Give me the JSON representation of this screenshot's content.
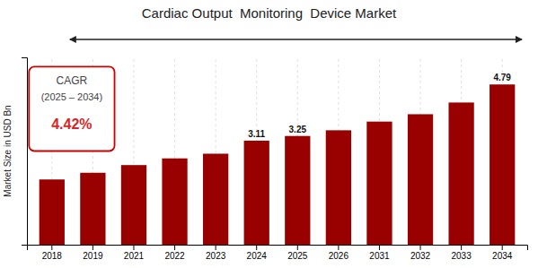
{
  "chart_data": {
    "type": "bar",
    "title": "Cardiac Output  Monitoring  Device Market",
    "ylabel": "Market Size in USD Bn",
    "categories": [
      "2018",
      "2019",
      "2021",
      "2022",
      "2023",
      "2024",
      "2025",
      "2026",
      "2031",
      "2032",
      "2033",
      "2034"
    ],
    "values": [
      1.95,
      2.15,
      2.38,
      2.58,
      2.72,
      3.11,
      3.25,
      3.42,
      3.68,
      3.9,
      4.25,
      4.79
    ],
    "value_labels": [
      null,
      null,
      null,
      null,
      null,
      "3.11",
      "3.25",
      null,
      null,
      null,
      null,
      "4.79"
    ],
    "color": "#990000",
    "ylim": [
      0,
      5.6
    ],
    "grid": true,
    "tick_labels": "x",
    "annotations": [
      "CAGR",
      "(2025 – 2034)",
      "4.42%"
    ]
  }
}
